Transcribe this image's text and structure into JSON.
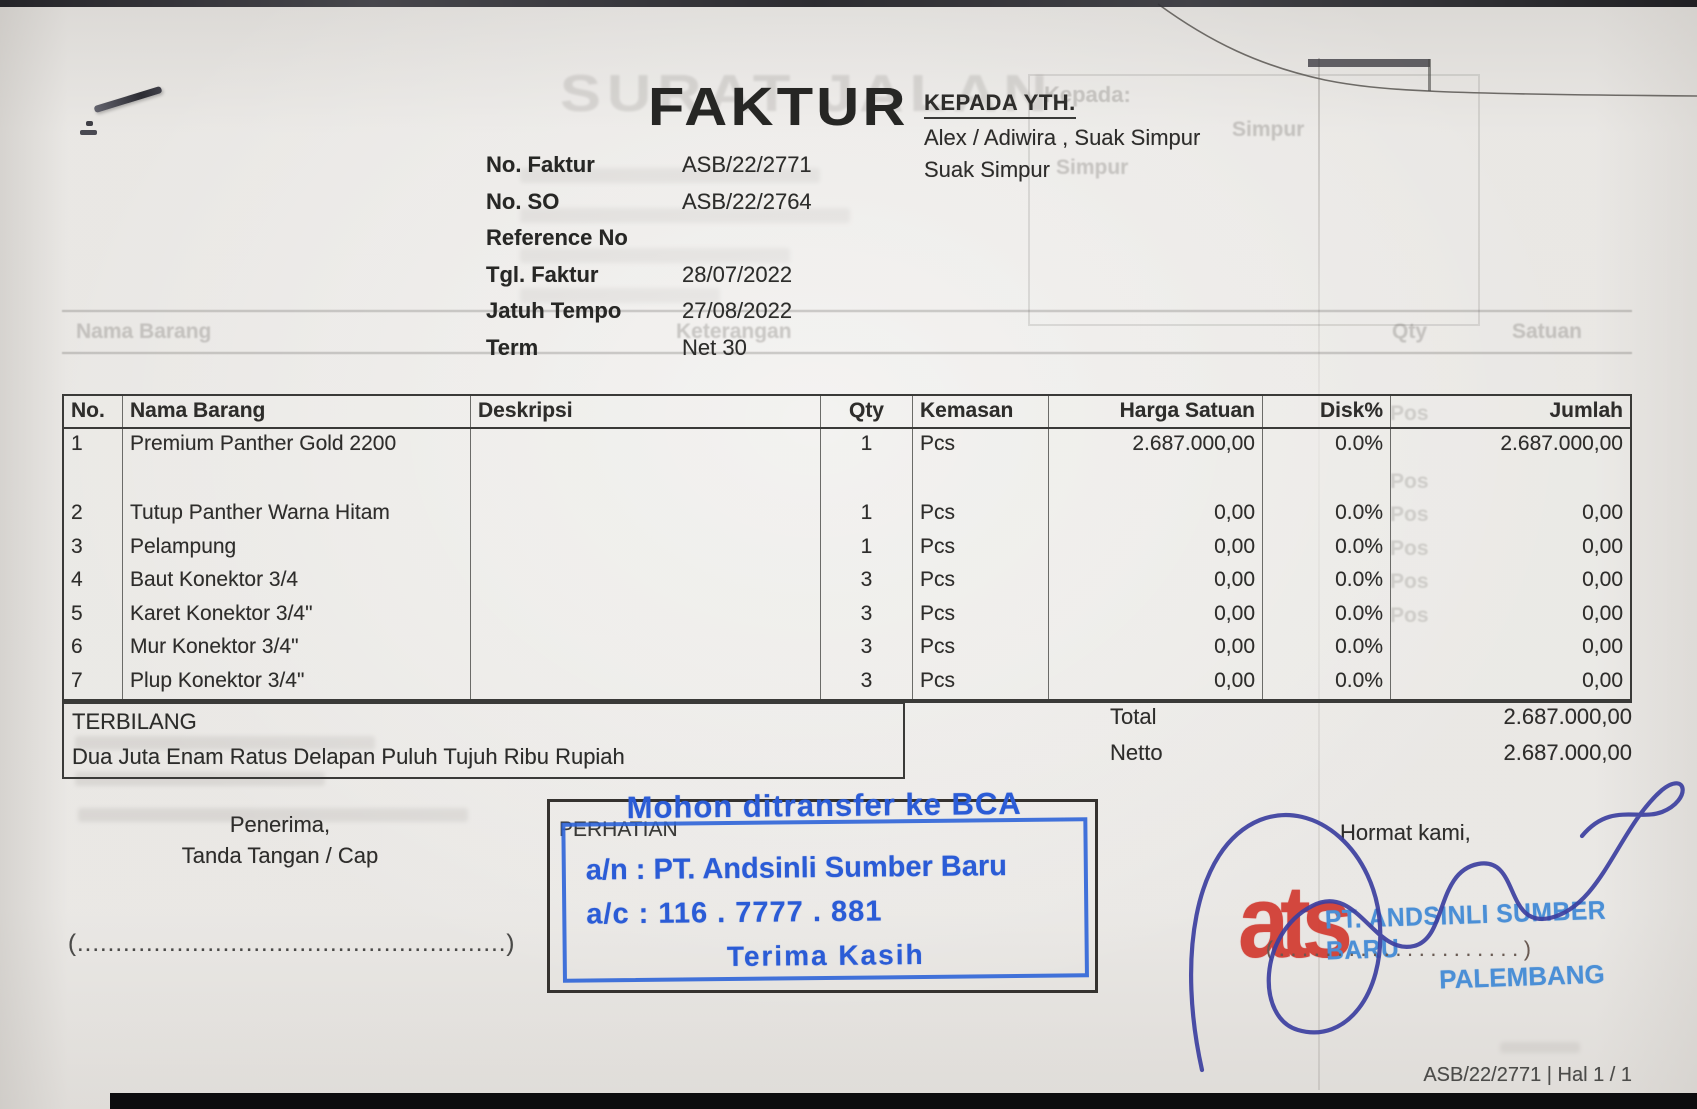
{
  "colors": {
    "stamp_blue": "#2b5cd6",
    "company_stamp_blue": "#4b8fd6",
    "logo_red": "#d23a30",
    "signature_ink": "#3c3f9f"
  },
  "document": {
    "title": "FAKTUR",
    "recipient": {
      "heading": "KEPADA YTH.",
      "line1": "Alex / Adiwira , Suak Simpur",
      "line2": "Suak Simpur"
    },
    "meta": {
      "rows": [
        {
          "label": "No. Faktur",
          "value": "ASB/22/2771"
        },
        {
          "label": "No. SO",
          "value": "ASB/22/2764"
        },
        {
          "label": "Reference No",
          "value": ""
        },
        {
          "label": "Tgl. Faktur",
          "value": "28/07/2022"
        },
        {
          "label": "Jatuh Tempo",
          "value": "27/08/2022"
        },
        {
          "label": "Term",
          "value": "Net 30"
        }
      ]
    },
    "items_table": {
      "headers": [
        "No.",
        "Nama Barang",
        "Deskripsi",
        "Qty",
        "Kemasan",
        "Harga Satuan",
        "Disk%",
        "Jumlah"
      ],
      "rows": [
        {
          "no": "1",
          "name": "Premium Panther Gold 2200",
          "desc": "",
          "qty": "1",
          "unit": "Pcs",
          "price": "2.687.000,00",
          "disc": "0.0%",
          "amount": "2.687.000,00"
        },
        {
          "no": "2",
          "name": "Tutup Panther Warna Hitam",
          "desc": "",
          "qty": "1",
          "unit": "Pcs",
          "price": "0,00",
          "disc": "0.0%",
          "amount": "0,00"
        },
        {
          "no": "3",
          "name": "Pelampung",
          "desc": "",
          "qty": "1",
          "unit": "Pcs",
          "price": "0,00",
          "disc": "0.0%",
          "amount": "0,00"
        },
        {
          "no": "4",
          "name": "Baut Konektor 3/4",
          "desc": "",
          "qty": "3",
          "unit": "Pcs",
          "price": "0,00",
          "disc": "0.0%",
          "amount": "0,00"
        },
        {
          "no": "5",
          "name": "Karet Konektor 3/4\"",
          "desc": "",
          "qty": "3",
          "unit": "Pcs",
          "price": "0,00",
          "disc": "0.0%",
          "amount": "0,00"
        },
        {
          "no": "6",
          "name": "Mur Konektor 3/4\"",
          "desc": "",
          "qty": "3",
          "unit": "Pcs",
          "price": "0,00",
          "disc": "0.0%",
          "amount": "0,00"
        },
        {
          "no": "7",
          "name": "Plup Konektor 3/4\"",
          "desc": "",
          "qty": "3",
          "unit": "Pcs",
          "price": "0,00",
          "disc": "0.0%",
          "amount": "0,00"
        }
      ]
    },
    "terbilang": {
      "label": "TERBILANG",
      "text": "Dua Juta Enam Ratus Delapan Puluh Tujuh Ribu Rupiah"
    },
    "totals": [
      {
        "label": "Total",
        "value": "2.687.000,00"
      },
      {
        "label": "Netto",
        "value": "2.687.000,00"
      }
    ],
    "receiver_block": {
      "line1": "Penerima,",
      "line2": "Tanda Tangan / Cap",
      "sign_line": "(........................................................)"
    },
    "attention_box": {
      "label": "PERHATIAN"
    },
    "transfer_stamp": {
      "line1": "Mohon ditransfer ke BCA",
      "line2": "a/n : PT. Andsinli Sumber Baru",
      "line3": "a/c : 116 . 7777 . 881",
      "line4": "Terima Kasih"
    },
    "sender_block": {
      "heading": "Hormat kami,",
      "logo_monogram": "ats",
      "company_line1": "PT. ANDSINLI SUMBER BARU",
      "company_line2": "PALEMBANG",
      "sign_line": "( . . . . . . . . . . . . . . . . . . . . . )"
    },
    "footer": {
      "page_ref": "ASB/22/2771 | Hal 1 / 1"
    },
    "ghost": {
      "back_page_title": "SURAT JALAN",
      "kepada_label": "Kepada:",
      "header_name": "Nama Barang",
      "header_desc": "Keterangan",
      "header_qty": "Qty",
      "header_unit": "Satuan",
      "pos_label": "Pos",
      "word_simpur": "Simpur"
    }
  }
}
